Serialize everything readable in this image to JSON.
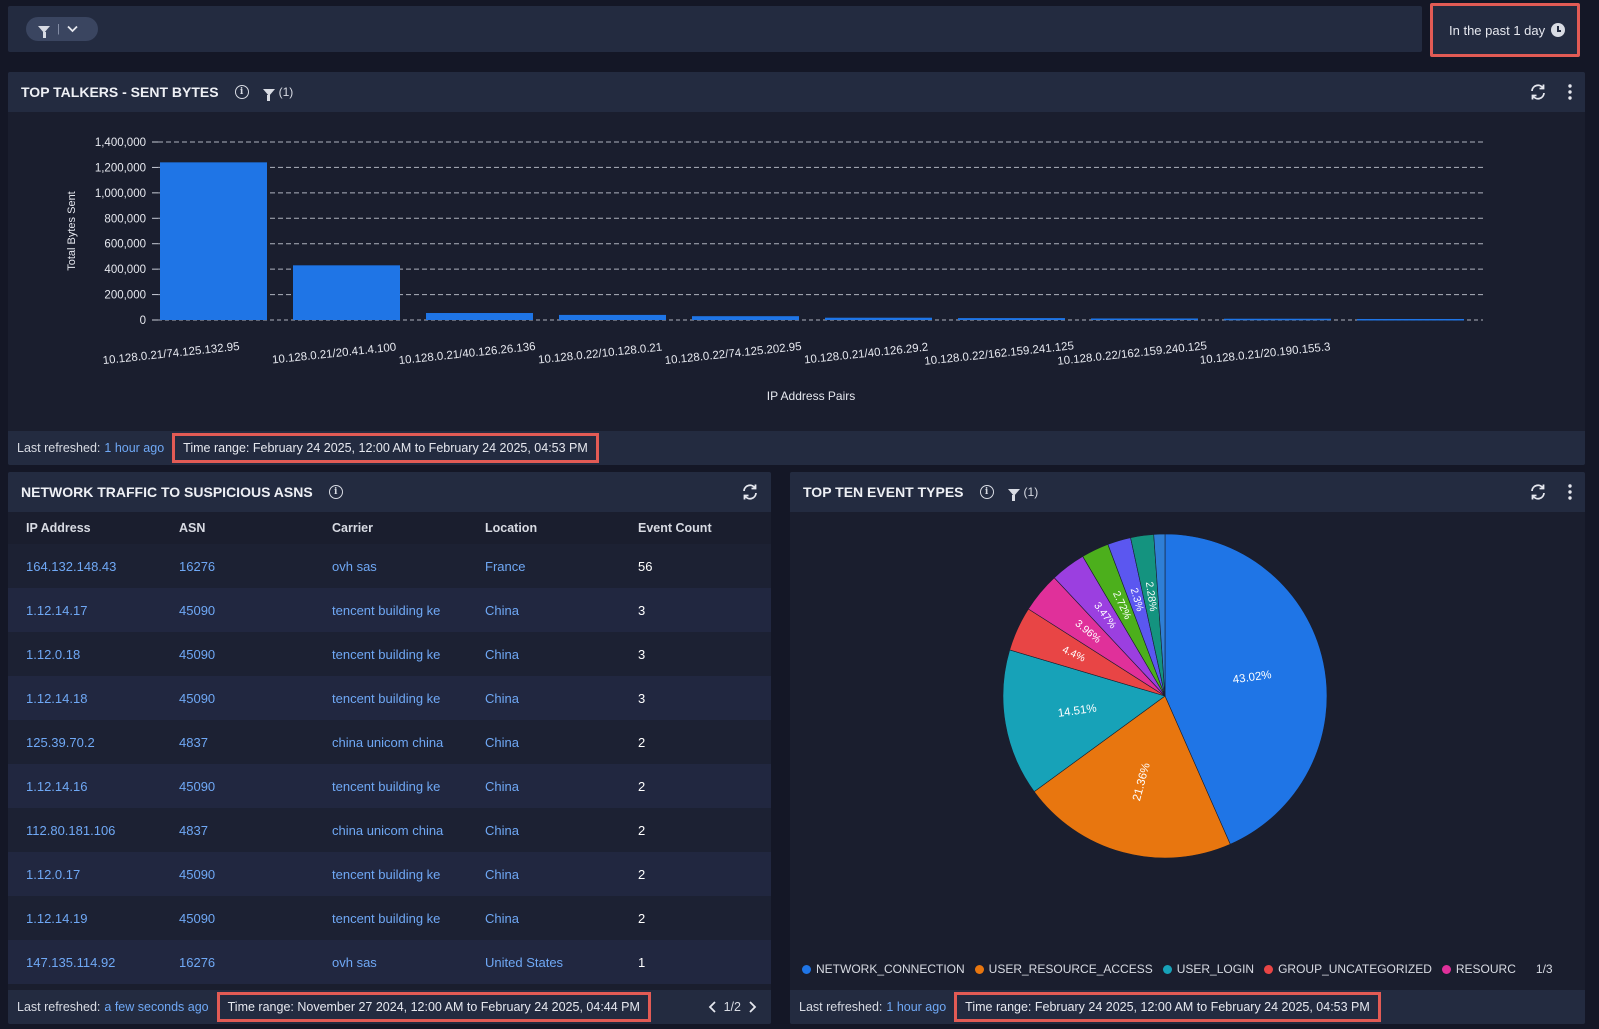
{
  "topbar": {
    "time_filter": "In the past 1 day"
  },
  "top_talkers": {
    "title": "TOP TALKERS - SENT BYTES",
    "filter_count": "(1)",
    "footer": {
      "last_refreshed_label": "Last refreshed:",
      "last_refreshed_value": "1 hour ago",
      "time_range": "Time range: February 24 2025, 12:00 AM to February 24 2025, 04:53 PM"
    }
  },
  "chart_data": [
    {
      "type": "bar",
      "title": "TOP TALKERS - SENT BYTES",
      "xlabel": "IP Address Pairs",
      "ylabel": "Total Bytes Sent",
      "ylim": [
        0,
        1400000
      ],
      "yticks": [
        "1,400,000",
        "1,200,000",
        "1,000,000",
        "800,000",
        "600,000",
        "400,000",
        "200,000",
        "0"
      ],
      "grid": true,
      "categories": [
        "10.128.0.21/74.125.132.95",
        "10.128.0.21/20.41.4.100",
        "10.128.0.21/40.126.26.136",
        "10.128.0.22/10.128.0.21",
        "10.128.0.22/74.125.202.95",
        "10.128.0.21/40.126.29.2",
        "10.128.0.22/162.159.241.125",
        "10.128.0.22/162.159.240.125",
        "10.128.0.21/20.190.155.3",
        ""
      ],
      "values": [
        1240000,
        430000,
        55000,
        40000,
        30000,
        18000,
        15000,
        12000,
        10000,
        8000
      ],
      "color": "#1f75e6"
    },
    {
      "type": "pie",
      "title": "TOP TEN EVENT TYPES",
      "slices": [
        {
          "label": "NETWORK_CONNECTION",
          "value": 43.02,
          "color": "#1f75e6"
        },
        {
          "label": "USER_RESOURCE_ACCESS",
          "value": 21.36,
          "color": "#e8760f"
        },
        {
          "label": "USER_LOGIN",
          "value": 14.51,
          "color": "#17a2b8"
        },
        {
          "label": "GROUP_UNCATEGORIZED",
          "value": 4.4,
          "color": "#e84545"
        },
        {
          "label": "RESOURCE",
          "value": 3.96,
          "color": "#e0309a"
        },
        {
          "label": "",
          "value": 3.47,
          "color": "#9b3fe0"
        },
        {
          "label": "",
          "value": 2.72,
          "color": "#4caf1c"
        },
        {
          "label": "",
          "value": 2.3,
          "color": "#5b57f0"
        },
        {
          "label": "",
          "value": 2.28,
          "color": "#14937f"
        },
        {
          "label": "",
          "value": 1.1,
          "color": "#2f7fd6"
        }
      ],
      "slice_labels": [
        "43.02%",
        "21.36%",
        "14.51%",
        "4.4%",
        "3.96%",
        "3.47%",
        "2.72%",
        "2.3%",
        "2.28%"
      ]
    }
  ],
  "asns": {
    "title": "NETWORK TRAFFIC TO SUSPICIOUS ASNS",
    "columns": [
      "IP Address",
      "ASN",
      "Carrier",
      "Location",
      "Event Count"
    ],
    "rows": [
      [
        "164.132.148.43",
        "16276",
        "ovh sas",
        "France",
        "56"
      ],
      [
        "1.12.14.17",
        "45090",
        "tencent building ke",
        "China",
        "3"
      ],
      [
        "1.12.0.18",
        "45090",
        "tencent building ke",
        "China",
        "3"
      ],
      [
        "1.12.14.18",
        "45090",
        "tencent building ke",
        "China",
        "3"
      ],
      [
        "125.39.70.2",
        "4837",
        "china unicom china",
        "China",
        "2"
      ],
      [
        "1.12.14.16",
        "45090",
        "tencent building ke",
        "China",
        "2"
      ],
      [
        "112.80.181.106",
        "4837",
        "china unicom china",
        "China",
        "2"
      ],
      [
        "1.12.0.17",
        "45090",
        "tencent building ke",
        "China",
        "2"
      ],
      [
        "1.12.14.19",
        "45090",
        "tencent building ke",
        "China",
        "2"
      ],
      [
        "147.135.114.92",
        "16276",
        "ovh sas",
        "United States",
        "1"
      ]
    ],
    "footer": {
      "last_refreshed_label": "Last refreshed:",
      "last_refreshed_value": "a few seconds ago",
      "time_range": "Time range: November 27 2024, 12:00 AM to February 24 2025, 04:44 PM",
      "page": "1/2"
    }
  },
  "event_types": {
    "title": "TOP TEN EVENT TYPES",
    "filter_count": "(1)",
    "legend": [
      "NETWORK_CONNECTION",
      "USER_RESOURCE_ACCESS",
      "USER_LOGIN",
      "GROUP_UNCATEGORIZED",
      "RESOURC"
    ],
    "legend_page": "1/3",
    "footer": {
      "last_refreshed_label": "Last refreshed:",
      "last_refreshed_value": "1 hour ago",
      "time_range": "Time range: February 24 2025, 12:00 AM to February 24 2025, 04:53 PM"
    }
  }
}
